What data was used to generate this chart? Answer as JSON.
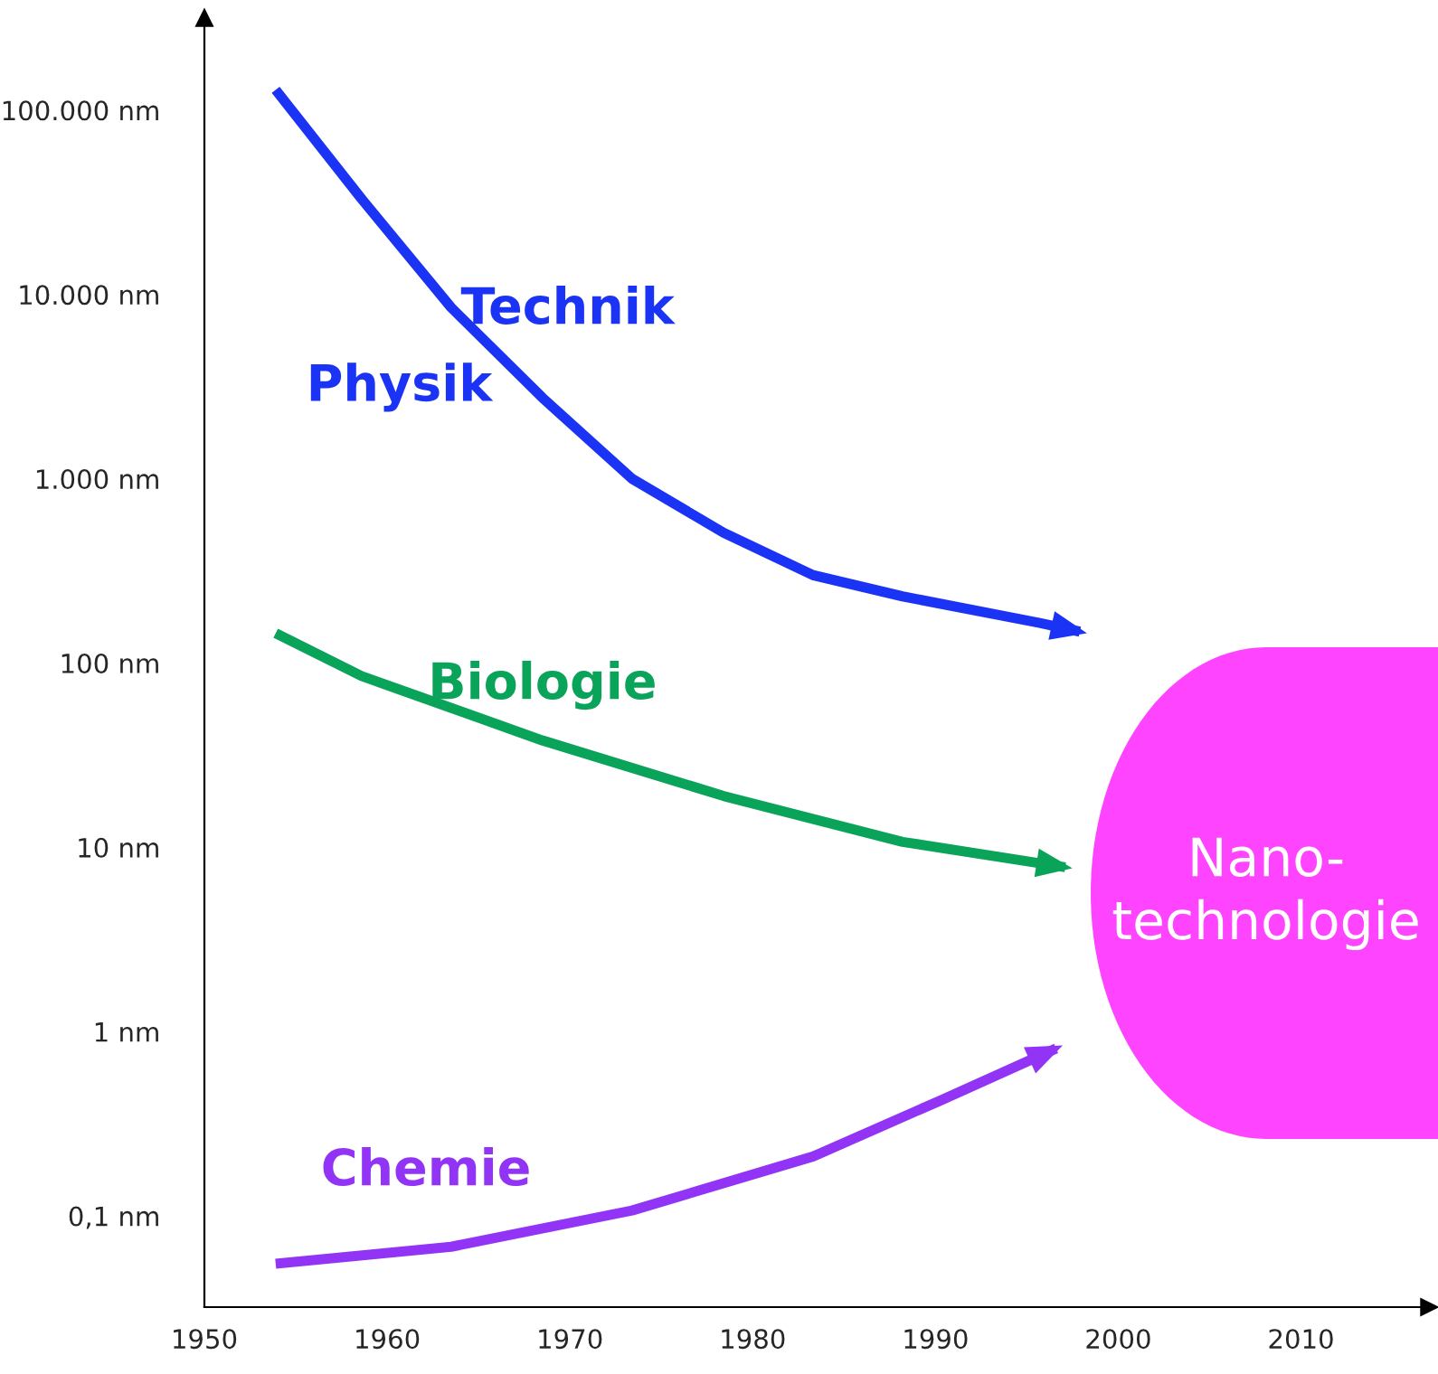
{
  "chart_data": {
    "type": "line",
    "log": "y",
    "xlim": [
      1950,
      2017
    ],
    "xticks": [
      1950,
      1960,
      1970,
      1980,
      1990,
      2000,
      2010
    ],
    "ylim": [
      0.032,
      316000
    ],
    "yticks": [
      {
        "value": 0.1,
        "label": "0,1 nm"
      },
      {
        "value": 1,
        "label": "1 nm"
      },
      {
        "value": 10,
        "label": "10 nm"
      },
      {
        "value": 100,
        "label": "100 nm"
      },
      {
        "value": 1000,
        "label": "1.000 nm"
      },
      {
        "value": 10000,
        "label": "10.000 nm"
      },
      {
        "value": 100000,
        "label": "100.000 nm"
      }
    ],
    "grid": false,
    "legend": false,
    "marker": "none",
    "line_style": "solid",
    "series": [
      {
        "name": "Technik",
        "color": "#1a33f5",
        "x": [
          1953.9,
          1958.6,
          1963.5,
          1968.5,
          1973.4,
          1978.4,
          1983.3,
          1988.2,
          1995.7,
          1997.9
        ],
        "values": [
          129000,
          33000,
          8500,
          2750,
          1000,
          510,
          300,
          230,
          165,
          148
        ]
      },
      {
        "name": "Biologie",
        "color": "#0aa35a",
        "x": [
          1953.9,
          1958.6,
          1968.5,
          1978.4,
          1988.2,
          1997.1
        ],
        "values": [
          145,
          85,
          38,
          19,
          10.7,
          7.8
        ]
      },
      {
        "name": "Chemie",
        "color": "#9234f5",
        "x": [
          1953.9,
          1963.5,
          1973.4,
          1983.3,
          1990.2,
          1996.6
        ],
        "values": [
          0.055,
          0.068,
          0.107,
          0.21,
          0.42,
          0.81
        ]
      }
    ],
    "annotations": [
      "Physik",
      "Nano-\ntechnologie"
    ]
  }
}
